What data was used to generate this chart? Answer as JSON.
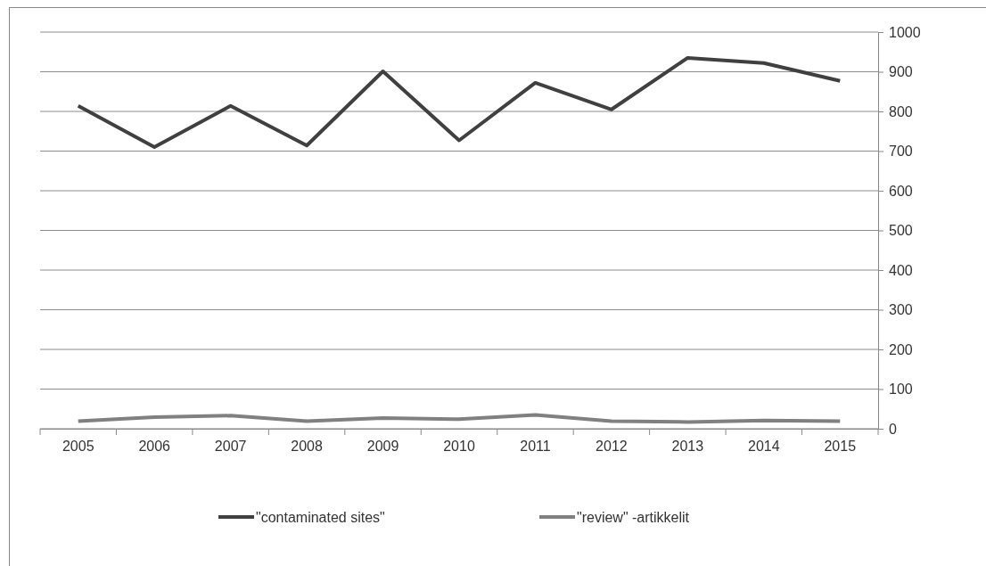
{
  "chart_data": {
    "type": "line",
    "categories": [
      "2005",
      "2006",
      "2007",
      "2008",
      "2009",
      "2010",
      "2011",
      "2012",
      "2013",
      "2014",
      "2015"
    ],
    "series": [
      {
        "name": "\"contaminated sites\"",
        "color": "#404040",
        "values": [
          814,
          710,
          814,
          714,
          901,
          727,
          872,
          805,
          935,
          922,
          877
        ]
      },
      {
        "name": "\"review\" -artikkelit",
        "color": "#808080",
        "values": [
          19,
          29,
          33,
          19,
          27,
          24,
          35,
          19,
          17,
          21,
          19
        ]
      }
    ],
    "ylim": [
      0,
      1000
    ],
    "yticks": [
      0,
      100,
      200,
      300,
      400,
      500,
      600,
      700,
      800,
      900,
      1000
    ],
    "grid": "y",
    "legend": "bottom",
    "marker": "none",
    "line_style": "solid"
  }
}
